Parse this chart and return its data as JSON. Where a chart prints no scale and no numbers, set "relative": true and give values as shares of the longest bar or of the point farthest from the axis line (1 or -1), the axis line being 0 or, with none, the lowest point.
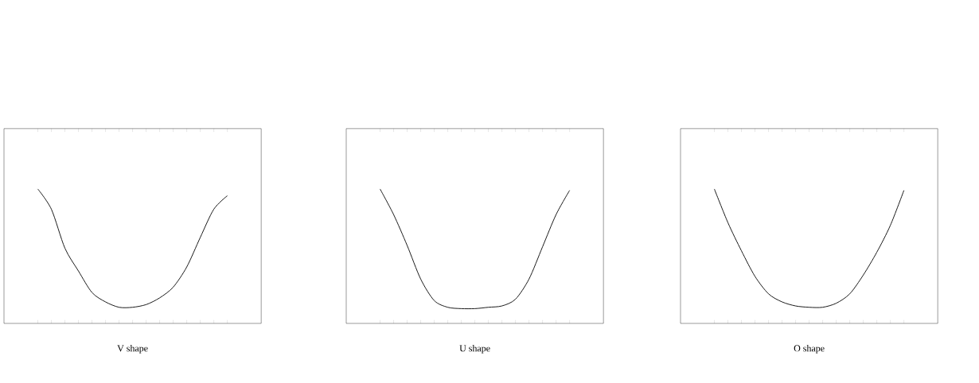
{
  "chart_data": [
    {
      "type": "line",
      "title": "V shape",
      "relative": true,
      "color": "#000000",
      "categories": [
        null,
        null,
        null,
        null,
        null,
        null,
        null,
        null,
        null,
        null,
        null,
        null,
        null,
        null,
        null
      ],
      "values": [
        1,
        0.85,
        0.56,
        0.39,
        0.23,
        0.16,
        0.12,
        0.12,
        0.14,
        0.19,
        0.27,
        0.42,
        0.64,
        0.85,
        0.95
      ]
    },
    {
      "type": "line",
      "title": "U shape",
      "relative": true,
      "color": "#000000",
      "categories": [
        null,
        null,
        null,
        null,
        null,
        null,
        null,
        null,
        null,
        null,
        null,
        null,
        null,
        null,
        null
      ],
      "values": [
        1,
        0.81,
        0.58,
        0.33,
        0.17,
        0.12,
        0.11,
        0.11,
        0.12,
        0.13,
        0.18,
        0.33,
        0.57,
        0.81,
        0.99
      ]
    },
    {
      "type": "line",
      "title": "O shape",
      "relative": true,
      "color": "#000000",
      "categories": [
        null,
        null,
        null,
        null,
        null,
        null,
        null,
        null,
        null,
        null,
        null,
        null,
        null,
        null,
        null
      ],
      "values": [
        1,
        0.75,
        0.54,
        0.35,
        0.22,
        0.16,
        0.13,
        0.12,
        0.12,
        0.15,
        0.22,
        0.36,
        0.53,
        0.73,
        0.99
      ]
    }
  ]
}
